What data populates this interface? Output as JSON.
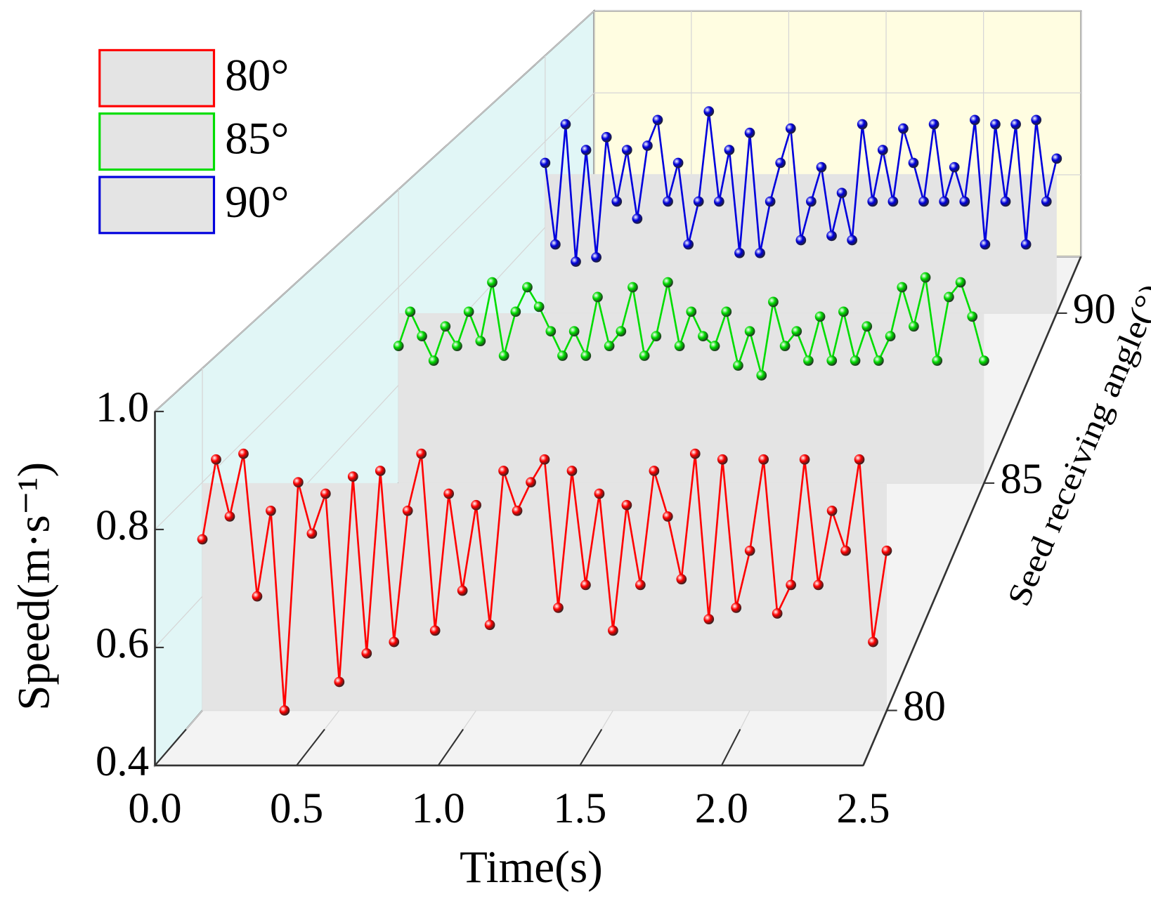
{
  "chart_data": {
    "type": "line3d",
    "xlabel": "Time(s)",
    "ylabel": "Speed(m·s⁻¹)",
    "zlabel": "Seed receiving angle(°)",
    "x": [
      0,
      0.05,
      0.1,
      0.15,
      0.2,
      0.25,
      0.3,
      0.35,
      0.4,
      0.45,
      0.5,
      0.55,
      0.6,
      0.65,
      0.7,
      0.75,
      0.8,
      0.85,
      0.9,
      0.95,
      1,
      1.05,
      1.1,
      1.15,
      1.2,
      1.25,
      1.3,
      1.35,
      1.4,
      1.45,
      1.5,
      1.55,
      1.6,
      1.65,
      1.7,
      1.75,
      1.8,
      1.85,
      1.9,
      1.95,
      2,
      2.05,
      2.1,
      2.15,
      2.2,
      2.25,
      2.3,
      2.35,
      2.4,
      2.45,
      2.5
    ],
    "series": [
      {
        "name": "80°",
        "color": "#ff0000",
        "z": 80,
        "values": [
          0.7,
          0.84,
          0.74,
          0.85,
          0.6,
          0.75,
          0.4,
          0.8,
          0.71,
          0.78,
          0.45,
          0.81,
          0.5,
          0.82,
          0.52,
          0.75,
          0.85,
          0.54,
          0.78,
          0.61,
          0.76,
          0.55,
          0.82,
          0.75,
          0.8,
          0.84,
          0.58,
          0.82,
          0.62,
          0.78,
          0.54,
          0.76,
          0.62,
          0.82,
          0.74,
          0.63,
          0.85,
          0.56,
          0.84,
          0.58,
          0.68,
          0.84,
          0.57,
          0.62,
          0.84,
          0.62,
          0.75,
          0.68,
          0.84,
          0.52,
          0.68
        ]
      },
      {
        "name": "85°",
        "color": "#00dd00",
        "z": 85,
        "values": [
          0.68,
          0.75,
          0.7,
          0.65,
          0.72,
          0.68,
          0.75,
          0.69,
          0.81,
          0.66,
          0.75,
          0.8,
          0.76,
          0.71,
          0.66,
          0.71,
          0.66,
          0.78,
          0.68,
          0.71,
          0.8,
          0.66,
          0.7,
          0.81,
          0.68,
          0.75,
          0.7,
          0.68,
          0.75,
          0.64,
          0.71,
          0.62,
          0.77,
          0.68,
          0.71,
          0.65,
          0.74,
          0.65,
          0.75,
          0.65,
          0.72,
          0.65,
          0.7,
          0.8,
          0.72,
          0.82,
          0.65,
          0.78,
          0.81,
          0.74,
          0.65
        ]
      },
      {
        "name": "90°",
        "color": "#0000dd",
        "z": 90,
        "values": [
          0.75,
          0.56,
          0.84,
          0.52,
          0.78,
          0.53,
          0.81,
          0.66,
          0.78,
          0.62,
          0.79,
          0.85,
          0.66,
          0.75,
          0.56,
          0.66,
          0.87,
          0.66,
          0.78,
          0.54,
          0.82,
          0.54,
          0.66,
          0.75,
          0.83,
          0.57,
          0.66,
          0.74,
          0.58,
          0.68,
          0.57,
          0.84,
          0.66,
          0.78,
          0.66,
          0.83,
          0.75,
          0.66,
          0.84,
          0.66,
          0.74,
          0.66,
          0.85,
          0.56,
          0.84,
          0.66,
          0.84,
          0.56,
          0.85,
          0.66,
          0.76
        ]
      }
    ],
    "xlim": [
      0,
      2.5
    ],
    "xticks": [
      {
        "value": 0,
        "label": "0.0"
      },
      0.5,
      {
        "value": 1,
        "label": "1.0"
      },
      1.5,
      {
        "value": 2,
        "label": "2.0"
      },
      2.5
    ],
    "ylim": [
      0.4,
      1.0
    ],
    "yticks": [
      0.4,
      0.6,
      0.8,
      {
        "value": 1,
        "label": "1.0"
      }
    ],
    "zlim": [
      79,
      92
    ],
    "zticks": [
      80,
      85,
      90
    ],
    "grid": true,
    "legend": "upper left"
  }
}
